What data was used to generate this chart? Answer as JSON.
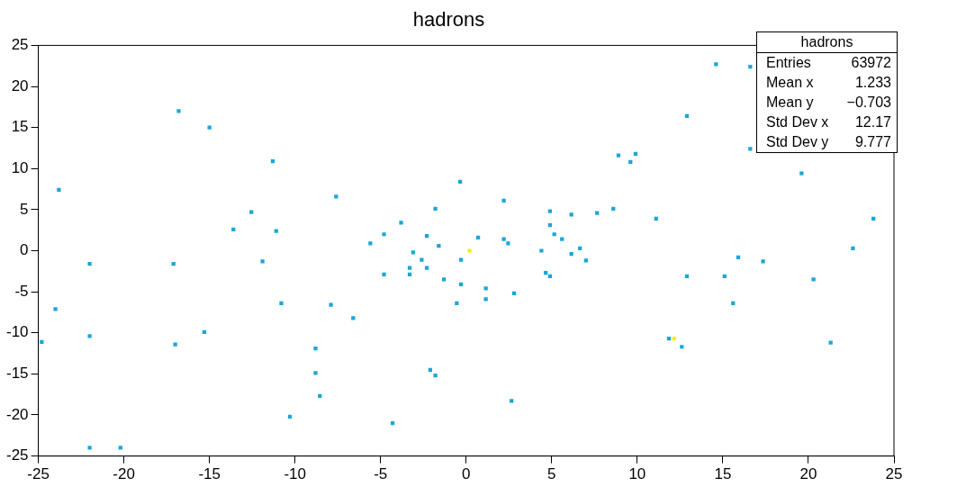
{
  "chart_data": {
    "type": "scatter",
    "title": "hadrons",
    "marker": "square",
    "grid": false,
    "xlim": [
      -25,
      25
    ],
    "xticks": [
      -25,
      -20,
      -15,
      -10,
      -5,
      0,
      5,
      10,
      15,
      20,
      25
    ],
    "ylim": [
      -25,
      25
    ],
    "yticks": [
      -25,
      -20,
      -15,
      -10,
      -5,
      0,
      5,
      10,
      15,
      20,
      25
    ],
    "annotations": [
      "hadrons",
      "Entries",
      "63972",
      "Mean x",
      "1.233",
      "Mean y",
      "−0.703",
      "Std Dev x",
      "12.17",
      "Std Dev y",
      "9.777"
    ],
    "series": [
      {
        "color": "#1aa6d6",
        "x": [
          -16.8,
          -15.0,
          -11.3,
          -23.8,
          -7.6,
          -12.55,
          -13.6,
          -11.1,
          -11.9,
          -22.0,
          -17.1,
          -10.8,
          -7.9,
          -24.0,
          -24.8,
          -6.6,
          -22.0,
          -15.3,
          -17.0,
          -8.8,
          -8.8,
          -8.55,
          -10.3,
          -4.3,
          -22.0,
          -20.2,
          -0.35,
          2.2,
          -1.8,
          4.9,
          6.15,
          7.65,
          -3.8,
          4.9,
          -4.8,
          -2.3,
          5.15,
          5.6,
          0.7,
          2.2,
          2.45,
          -5.6,
          -1.6,
          6.65,
          -3.1,
          4.4,
          6.15,
          7.0,
          -2.6,
          -0.3,
          -3.3,
          -2.3,
          -4.8,
          -3.3,
          -1.3,
          -0.3,
          1.15,
          1.15,
          2.8,
          -0.55,
          4.65,
          4.9,
          -2.1,
          -1.8,
          2.65,
          14.6,
          16.6,
          12.9,
          16.6,
          8.9,
          9.9,
          9.6,
          19.6,
          8.6,
          11.1,
          23.8,
          22.6,
          15.9,
          17.35,
          12.9,
          15.1,
          20.3,
          15.6,
          11.85,
          12.6,
          21.3
        ],
        "values": [
          17.0,
          15.0,
          10.9,
          7.4,
          6.6,
          4.7,
          2.6,
          2.4,
          -1.3,
          -1.6,
          -1.6,
          -6.4,
          -6.6,
          -7.1,
          -11.1,
          -8.2,
          -10.4,
          -9.9,
          -11.4,
          -11.9,
          -14.9,
          -17.7,
          -20.2,
          -21.0,
          -24.0,
          -24.0,
          8.4,
          6.1,
          5.1,
          4.8,
          4.4,
          4.6,
          3.4,
          3.1,
          2.0,
          1.8,
          2.0,
          1.4,
          1.6,
          1.4,
          0.9,
          0.9,
          0.6,
          0.3,
          -0.2,
          0.0,
          -0.4,
          -1.2,
          -1.1,
          -1.1,
          -2.1,
          -2.1,
          -2.9,
          -2.9,
          -3.5,
          -4.1,
          -4.6,
          -5.9,
          -5.2,
          -6.4,
          -2.7,
          -3.1,
          -14.5,
          -15.2,
          -18.3,
          22.7,
          22.4,
          16.4,
          12.4,
          11.6,
          11.8,
          10.8,
          9.4,
          5.1,
          3.9,
          3.9,
          0.3,
          -0.8,
          -1.3,
          -3.1,
          -3.1,
          -3.5,
          -6.4,
          -10.7,
          -11.7,
          -11.2
        ]
      },
      {
        "color": "#f2f200",
        "x": [
          0.2,
          12.15
        ],
        "values": [
          0.0,
          -10.7
        ]
      }
    ]
  }
}
